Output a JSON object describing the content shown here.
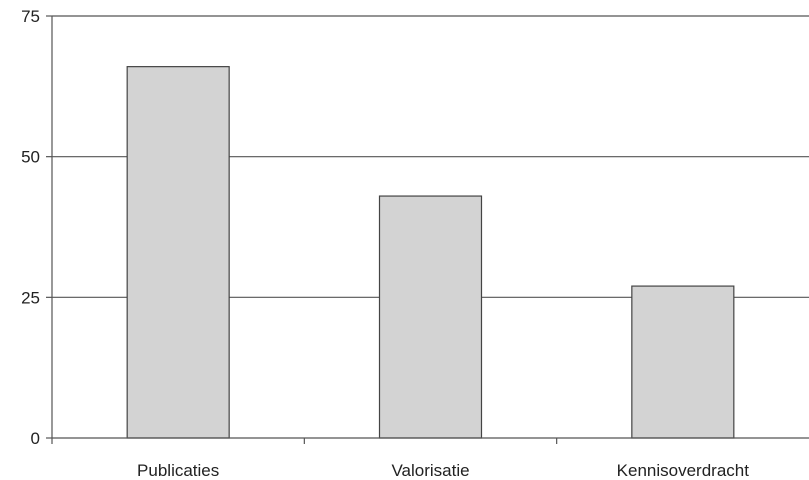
{
  "chart_data": {
    "type": "bar",
    "title": "",
    "xlabel": "",
    "ylabel": "",
    "categories": [
      "Publicaties",
      "Valorisatie",
      "Kennisoverdracht"
    ],
    "values": [
      66,
      43,
      27
    ],
    "ylim": [
      0,
      75
    ],
    "yticks": [
      0,
      25,
      50,
      75
    ],
    "grid": true,
    "legend": "none",
    "bar_color": "#d3d3d3",
    "bar_edge_color": "#444444",
    "grid_color": "#555555"
  }
}
